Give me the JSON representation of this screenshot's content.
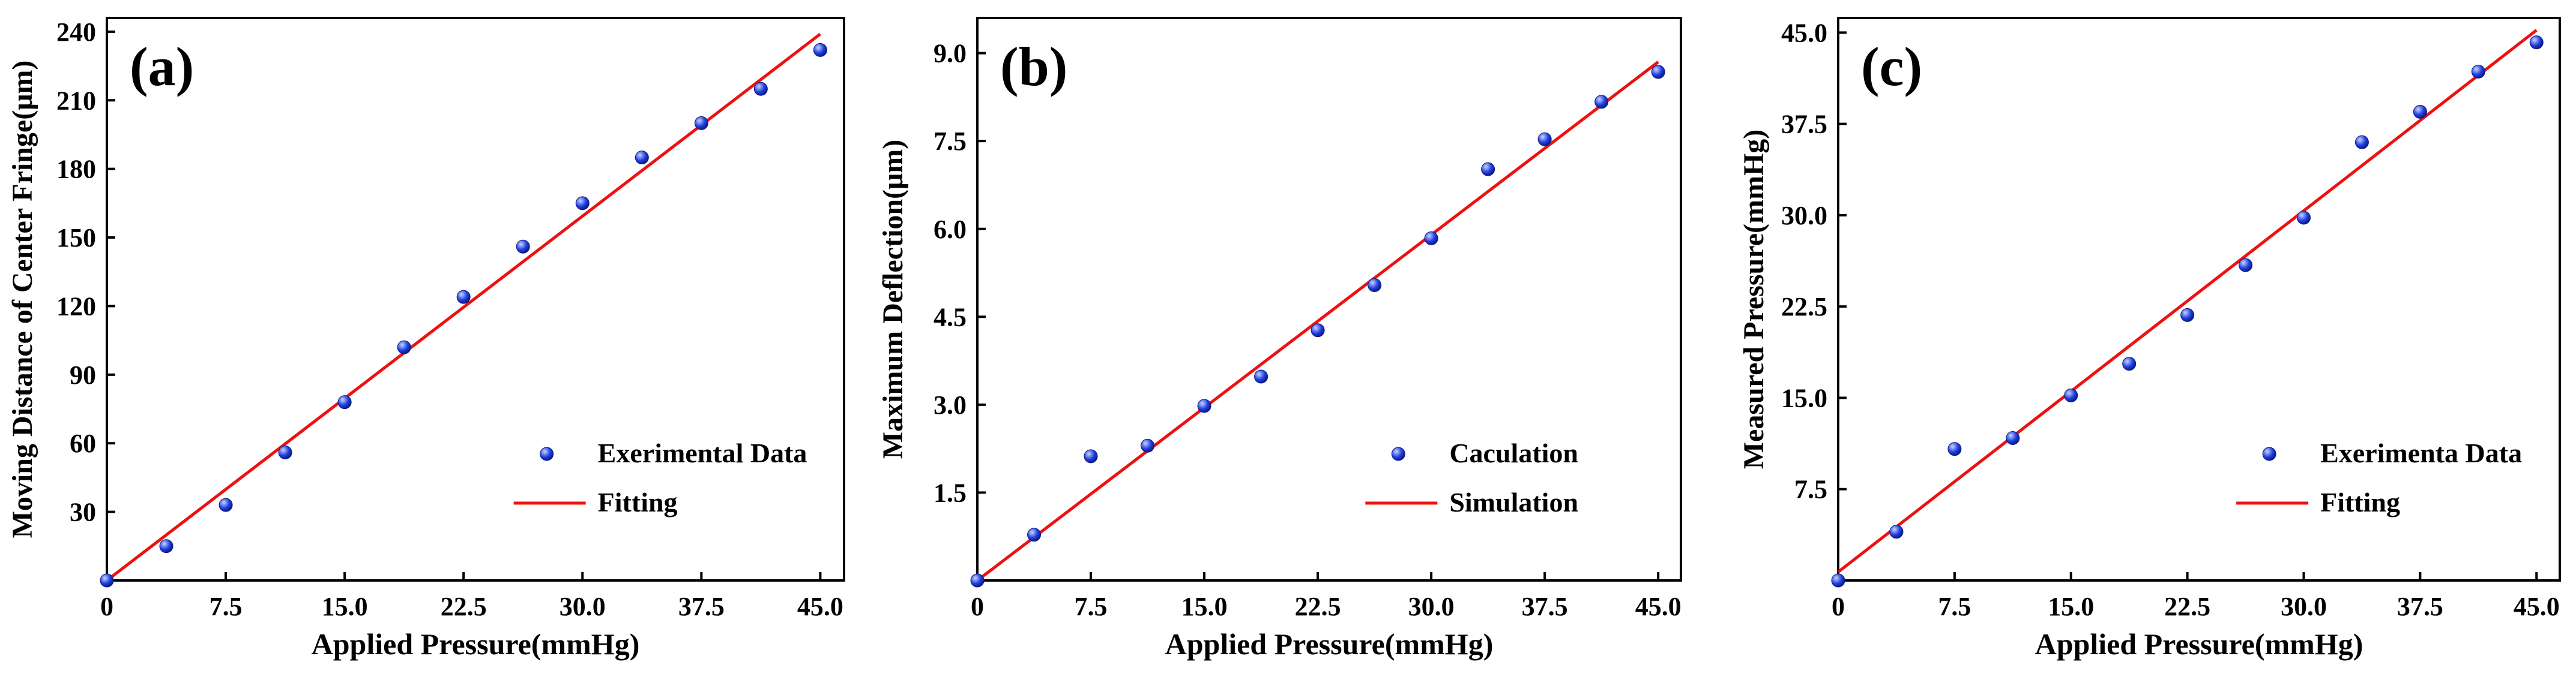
{
  "colors": {
    "marker_fill": "#1f3fe0",
    "marker_highlight": "#c8d4ff",
    "fit_line": "#ee1111",
    "axis": "#000000"
  },
  "chart_data": [
    {
      "type": "scatter",
      "panel_label": "(a)",
      "xlabel": "Applied Pressure(mmHg)",
      "ylabel": "Moving Distance of Center Fringe(μm)",
      "xlim": [
        0,
        46.5
      ],
      "ylim": [
        0,
        246
      ],
      "xticks": [
        0,
        7.5,
        15,
        22.5,
        30,
        37.5,
        45
      ],
      "xtick_labels": [
        "0",
        "7.5",
        "15.0",
        "22.5",
        "30.0",
        "37.5",
        "45.0"
      ],
      "yticks": [
        30,
        60,
        90,
        120,
        150,
        180,
        210,
        240
      ],
      "ytick_labels": [
        "30",
        "60",
        "90",
        "120",
        "150",
        "180",
        "210",
        "240"
      ],
      "legend_position": "bottom-right",
      "series": [
        {
          "name": "Exerimental Data",
          "kind": "scatter",
          "x": [
            0,
            3.75,
            7.5,
            11.25,
            15,
            18.75,
            22.5,
            26.25,
            30,
            33.75,
            37.5,
            41.25,
            45
          ],
          "y": [
            0,
            15,
            33,
            56,
            78,
            102,
            124,
            146,
            165,
            185,
            200,
            215,
            232
          ]
        },
        {
          "name": "Fitting",
          "kind": "line",
          "x": [
            0,
            45
          ],
          "y": [
            0,
            239
          ]
        }
      ]
    },
    {
      "type": "scatter",
      "panel_label": "(b)",
      "xlabel": "Applied Pressure(mmHg)",
      "ylabel": "Maximum Deflection(μm)",
      "xlim": [
        0,
        46.5
      ],
      "ylim": [
        0,
        9.6
      ],
      "xticks": [
        0,
        7.5,
        15,
        22.5,
        30,
        37.5,
        45
      ],
      "xtick_labels": [
        "0",
        "7.5",
        "15.0",
        "22.5",
        "30.0",
        "37.5",
        "45.0"
      ],
      "yticks": [
        1.5,
        3,
        4.5,
        6,
        7.5,
        9
      ],
      "ytick_labels": [
        "1.5",
        "3.0",
        "4.5",
        "6.0",
        "7.5",
        "9.0"
      ],
      "legend_position": "bottom-right",
      "series": [
        {
          "name": "Caculation",
          "kind": "scatter",
          "x": [
            0,
            3.75,
            7.5,
            11.25,
            15,
            18.75,
            22.5,
            26.25,
            30,
            33.75,
            37.5,
            41.25,
            45
          ],
          "y": [
            0,
            0.78,
            2.12,
            2.3,
            2.98,
            3.48,
            4.27,
            5.04,
            5.84,
            7.02,
            7.53,
            8.17,
            8.68
          ]
        },
        {
          "name": "Simulation",
          "kind": "line",
          "x": [
            0,
            45
          ],
          "y": [
            0,
            8.85
          ]
        }
      ]
    },
    {
      "type": "scatter",
      "panel_label": "(c)",
      "xlabel": "Applied Pressure(mmHg)",
      "ylabel": "Measured Pressure(mmHg)",
      "xlim": [
        0,
        46.5
      ],
      "ylim": [
        0,
        46.2
      ],
      "xticks": [
        0,
        7.5,
        15,
        22.5,
        30,
        37.5,
        45
      ],
      "xtick_labels": [
        "0",
        "7.5",
        "15.0",
        "22.5",
        "30.0",
        "37.5",
        "45.0"
      ],
      "yticks": [
        7.5,
        15,
        22.5,
        30,
        37.5,
        45
      ],
      "ytick_labels": [
        "7.5",
        "15.0",
        "22.5",
        "30.0",
        "37.5",
        "45.0"
      ],
      "legend_position": "bottom-right",
      "series": [
        {
          "name": "Exerimenta Data",
          "kind": "scatter",
          "x": [
            0,
            3.75,
            7.5,
            11.25,
            15,
            18.75,
            22.5,
            26.25,
            30,
            33.75,
            37.5,
            41.25,
            45
          ],
          "y": [
            0,
            4,
            10.8,
            11.7,
            15.2,
            17.8,
            21.8,
            25.9,
            29.8,
            36,
            38.5,
            41.8,
            44.2
          ]
        },
        {
          "name": "Fitting",
          "kind": "line",
          "x": [
            0,
            45
          ],
          "y": [
            0.7,
            45.2
          ]
        }
      ]
    }
  ]
}
